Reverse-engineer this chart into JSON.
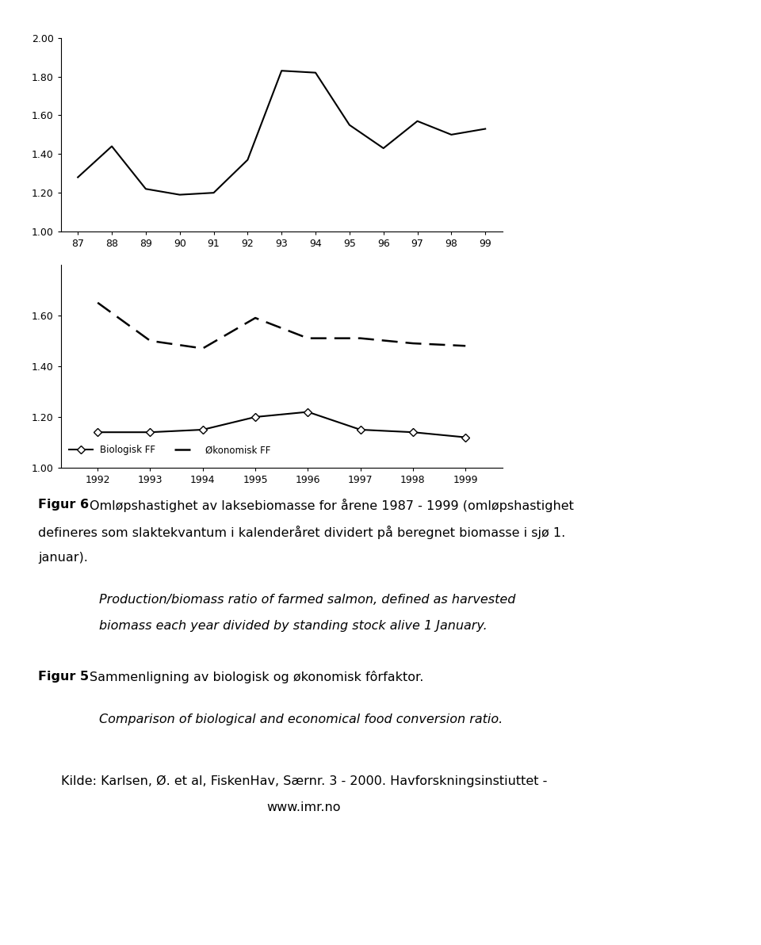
{
  "chart1": {
    "years": [
      87,
      88,
      89,
      90,
      91,
      92,
      93,
      94,
      95,
      96,
      97,
      98,
      99
    ],
    "values": [
      1.28,
      1.44,
      1.22,
      1.19,
      1.2,
      1.37,
      1.83,
      1.82,
      1.55,
      1.43,
      1.57,
      1.5,
      1.53
    ],
    "ylim": [
      1.0,
      2.0
    ],
    "yticks": [
      1.0,
      1.2,
      1.4,
      1.6,
      1.8,
      2.0
    ],
    "xlim": [
      86.5,
      99.5
    ]
  },
  "chart2": {
    "years": [
      1992,
      1993,
      1994,
      1995,
      1996,
      1997,
      1998,
      1999
    ],
    "biologisk": [
      1.14,
      1.14,
      1.15,
      1.2,
      1.22,
      1.15,
      1.14,
      1.12
    ],
    "okonomisk": [
      1.65,
      1.5,
      1.47,
      1.59,
      1.51,
      1.51,
      1.49,
      1.48
    ],
    "ylim": [
      1.0,
      1.8
    ],
    "yticks": [
      1.0,
      1.2,
      1.4,
      1.6
    ],
    "xlim": [
      1991.3,
      1999.7
    ]
  },
  "legend_biologisk": "Biologisk FF",
  "legend_okonomisk": "Økonomisk FF",
  "background_color": "#ffffff",
  "line_color": "#000000",
  "figur6_bold": "Figur 6",
  "figur6_text": " Omløpshastighet av laksebiomasse for årene 1987 - 1999 (omløpshastighet\ndefineres som slaktekvantum i kalenderåret dividert på beregnet biomasse i sjø 1.\njanuar).",
  "figur6_italic": "Production/biomass ratio of farmed salmon, defined as harvested\nbiomass each year divided by standing stock alive 1 January.",
  "figur5_bold": "Figur 5",
  "figur5_text": " Sammenligning av biologisk og økonomisk fôrfaktor.",
  "figur5_italic": "Comparison of biological and economical food conversion ratio.",
  "kilde_text": "Kilde: Karlsen, Ø. et al, FiskenHav, Særnr. 3 - 2000. Havforskningsinstiuttet -\n                                       www.imr.no"
}
